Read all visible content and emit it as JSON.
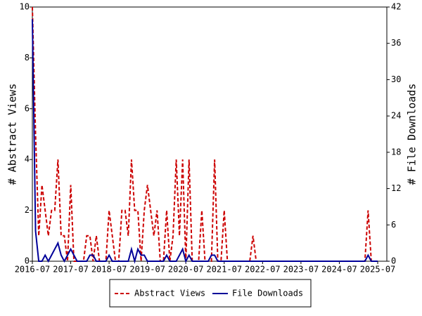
{
  "chart_data": {
    "type": "line",
    "x": [
      "2016-07",
      "2016-08",
      "2016-09",
      "2016-10",
      "2016-11",
      "2016-12",
      "2017-01",
      "2017-02",
      "2017-03",
      "2017-04",
      "2017-05",
      "2017-06",
      "2017-07",
      "2017-08",
      "2017-09",
      "2017-10",
      "2017-11",
      "2017-12",
      "2018-01",
      "2018-02",
      "2018-03",
      "2018-04",
      "2018-05",
      "2018-06",
      "2018-07",
      "2018-08",
      "2018-09",
      "2018-10",
      "2018-11",
      "2018-12",
      "2019-01",
      "2019-02",
      "2019-03",
      "2019-04",
      "2019-05",
      "2019-06",
      "2019-07",
      "2019-08",
      "2019-09",
      "2019-10",
      "2019-11",
      "2019-12",
      "2020-01",
      "2020-02",
      "2020-03",
      "2020-04",
      "2020-05",
      "2020-06",
      "2020-07",
      "2020-08",
      "2020-09",
      "2020-10",
      "2020-11",
      "2020-12",
      "2021-01",
      "2021-02",
      "2021-03",
      "2021-04",
      "2021-05",
      "2021-06",
      "2021-07",
      "2021-08",
      "2021-09",
      "2021-10",
      "2021-11",
      "2021-12",
      "2022-01",
      "2022-02",
      "2022-03",
      "2022-04",
      "2022-05",
      "2022-06",
      "2022-07",
      "2022-08",
      "2022-09",
      "2022-10",
      "2022-11",
      "2022-12",
      "2023-01",
      "2023-02",
      "2023-03",
      "2023-04",
      "2023-05",
      "2023-06",
      "2023-07",
      "2023-08",
      "2023-09",
      "2023-10",
      "2023-11",
      "2023-12",
      "2024-01",
      "2024-02",
      "2024-03",
      "2024-04",
      "2024-05",
      "2024-06",
      "2024-07",
      "2024-08",
      "2024-09",
      "2024-10",
      "2024-11",
      "2024-12",
      "2025-01",
      "2025-02",
      "2025-03",
      "2025-04",
      "2025-05",
      "2025-06",
      "2025-07"
    ],
    "xticks": [
      "2016-07",
      "2017-07",
      "2018-07",
      "2019-07",
      "2020-07",
      "2021-07",
      "2022-07",
      "2023-07",
      "2024-07",
      "2025-07"
    ],
    "ylabel": "# Abstract Views",
    "y2label": "# File Downloads",
    "ylim": [
      0,
      10
    ],
    "yticks": [
      0,
      2,
      4,
      6,
      8,
      10
    ],
    "y2lim": [
      0,
      42
    ],
    "y2ticks": [
      0,
      6,
      12,
      18,
      24,
      30,
      36,
      42
    ],
    "legend": "bottom",
    "series": [
      {
        "name": "Abstract Views",
        "color": "#cc0000",
        "dashed": true,
        "values": [
          10,
          5,
          1,
          3,
          2,
          1,
          2,
          2,
          4,
          1,
          1,
          0,
          3,
          0,
          0,
          0,
          0,
          1,
          1,
          0,
          1,
          0,
          0,
          0,
          2,
          1,
          0,
          0,
          2,
          2,
          1,
          4,
          2,
          2,
          0,
          2,
          3,
          2,
          1,
          2,
          0,
          0,
          2,
          0,
          1,
          4,
          1,
          4,
          0,
          4,
          0,
          0,
          0,
          2,
          0,
          0,
          0,
          4,
          0,
          0,
          2,
          0,
          0,
          0,
          0,
          0,
          0,
          0,
          0,
          1,
          0,
          0,
          0,
          0,
          0,
          0,
          0,
          0,
          0,
          0,
          0,
          0,
          0,
          0,
          0,
          0,
          0,
          0,
          0,
          0,
          0,
          0,
          0,
          0,
          0,
          0,
          0,
          0,
          0,
          0,
          0,
          0,
          0,
          0,
          0,
          2,
          0,
          0,
          0
        ]
      },
      {
        "name": "File Downloads",
        "color": "#000099",
        "dashed": false,
        "axis": "y2",
        "values": [
          40,
          5,
          0,
          0,
          1,
          0,
          1,
          2,
          3,
          1,
          0,
          1,
          2,
          1,
          0,
          0,
          0,
          0,
          1,
          1,
          0,
          0,
          0,
          0,
          1,
          0,
          0,
          0,
          0,
          0,
          0,
          2,
          0,
          2,
          1,
          1,
          0,
          0,
          0,
          0,
          0,
          0,
          1,
          0,
          0,
          0,
          1,
          2,
          0,
          1,
          0,
          0,
          0,
          0,
          0,
          0,
          1,
          1,
          0,
          0,
          0,
          0,
          0,
          0,
          0,
          0,
          0,
          0,
          0,
          0,
          0,
          0,
          0,
          0,
          0,
          0,
          0,
          0,
          0,
          0,
          0,
          0,
          0,
          0,
          0,
          0,
          0,
          0,
          0,
          0,
          0,
          0,
          0,
          0,
          0,
          0,
          0,
          0,
          0,
          0,
          0,
          0,
          0,
          0,
          0,
          1,
          0,
          0,
          0
        ]
      }
    ]
  }
}
